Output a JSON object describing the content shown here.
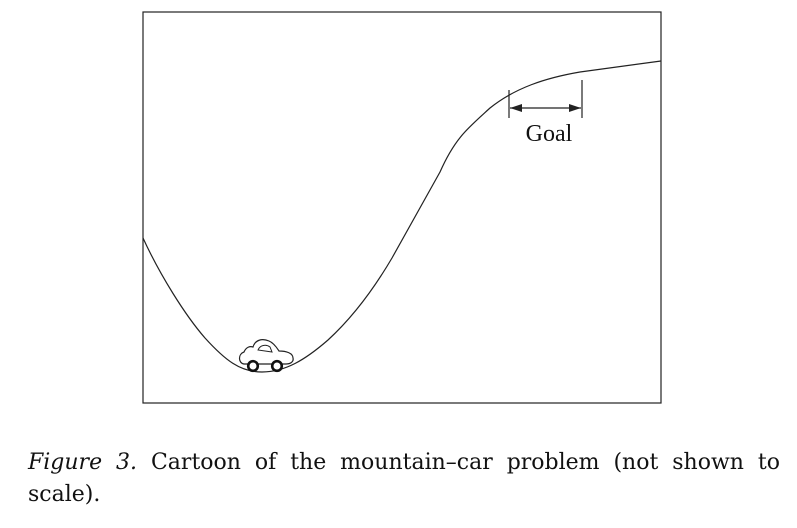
{
  "diagram": {
    "goal_label": "Goal"
  },
  "caption": {
    "label": "Figure 3.",
    "text": " Cartoon of the mountain–car problem (not shown to scale)."
  }
}
